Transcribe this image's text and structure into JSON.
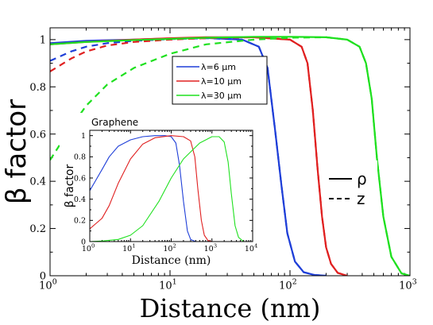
{
  "chart_data": [
    {
      "type": "line",
      "xlabel": "Distance (nm)",
      "ylabel": "β factor",
      "xscale": "log",
      "xlim": [
        1,
        1000
      ],
      "ylim": [
        0,
        1.05
      ],
      "xticks": [
        {
          "v": 1,
          "base": "10",
          "exp": "0"
        },
        {
          "v": 10,
          "base": "10",
          "exp": "1"
        },
        {
          "v": 100,
          "base": "10",
          "exp": "2"
        },
        {
          "v": 1000,
          "base": "10",
          "exp": "3"
        }
      ],
      "yticks": [
        "0",
        "0.2",
        "0.4",
        "0.6",
        "0.8",
        "1"
      ],
      "legend": {
        "placement": "top-middle",
        "entries": [
          {
            "label": "λ=6 μm",
            "color": "#1f3fd8"
          },
          {
            "label": "λ=10 μm",
            "color": "#e02020"
          },
          {
            "label": "λ=30 μm",
            "color": "#1fe01f"
          }
        ]
      },
      "style_legend": {
        "placement": "right-middle",
        "entries": [
          {
            "label": "ρ",
            "dash": "solid"
          },
          {
            "label": "z",
            "dash": "dashed"
          }
        ]
      },
      "series": [
        {
          "name": "λ=6 μm",
          "component": "ρ",
          "color": "#1f3fd8",
          "dash": "solid",
          "x": [
            1,
            2,
            5,
            10,
            20,
            40,
            55,
            65,
            75,
            85,
            95,
            110,
            130,
            160,
            200
          ],
          "y": [
            0.985,
            0.995,
            1.0,
            1.005,
            1.007,
            1.0,
            0.97,
            0.88,
            0.62,
            0.38,
            0.18,
            0.06,
            0.015,
            0.003,
            0.0
          ]
        },
        {
          "name": "λ=6 μm",
          "component": "z",
          "color": "#1f3fd8",
          "dash": "dashed",
          "x": [
            1,
            1.5,
            2,
            3,
            5,
            10,
            20,
            40,
            55,
            65,
            75,
            85,
            95,
            110,
            130,
            160,
            200
          ],
          "y": [
            0.91,
            0.95,
            0.97,
            0.985,
            0.995,
            1.002,
            1.006,
            1.0,
            0.97,
            0.88,
            0.62,
            0.38,
            0.18,
            0.06,
            0.015,
            0.003,
            0.0
          ]
        },
        {
          "name": "λ=10 μm",
          "component": "ρ",
          "color": "#e02020",
          "dash": "solid",
          "x": [
            1,
            2,
            5,
            10,
            20,
            50,
            100,
            125,
            140,
            155,
            170,
            185,
            200,
            220,
            250,
            300
          ],
          "y": [
            0.98,
            0.99,
            1.0,
            1.006,
            1.01,
            1.01,
            1.0,
            0.97,
            0.9,
            0.7,
            0.45,
            0.25,
            0.12,
            0.05,
            0.012,
            0.0
          ]
        },
        {
          "name": "λ=10 μm",
          "component": "z",
          "color": "#e02020",
          "dash": "dashed",
          "x": [
            1,
            1.5,
            2,
            3,
            5,
            10,
            20,
            50,
            100,
            125,
            140,
            155,
            170,
            185,
            200,
            220,
            250,
            300
          ],
          "y": [
            0.865,
            0.92,
            0.95,
            0.975,
            0.99,
            1.0,
            1.006,
            1.01,
            1.0,
            0.97,
            0.9,
            0.7,
            0.45,
            0.25,
            0.12,
            0.05,
            0.012,
            0.0
          ]
        },
        {
          "name": "λ=30 μm",
          "component": "ρ",
          "color": "#1fe01f",
          "dash": "solid",
          "x": [
            1,
            2,
            5,
            10,
            20,
            50,
            100,
            200,
            300,
            380,
            430,
            480,
            530,
            600,
            700,
            850,
            1000
          ],
          "y": [
            0.98,
            0.99,
            0.998,
            1.003,
            1.008,
            1.012,
            1.012,
            1.01,
            1.0,
            0.97,
            0.9,
            0.75,
            0.5,
            0.25,
            0.08,
            0.01,
            0.0
          ]
        },
        {
          "name": "λ=30 μm",
          "component": "z",
          "color": "#1fe01f",
          "dash": "dashed",
          "x": [
            1,
            1.5,
            2,
            3,
            5,
            10,
            20,
            50,
            100,
            200,
            300,
            380,
            430,
            480,
            530,
            600,
            700,
            850,
            1000
          ],
          "y": [
            0.49,
            0.63,
            0.72,
            0.81,
            0.88,
            0.94,
            0.98,
            1.0,
            1.008,
            1.01,
            1.0,
            0.97,
            0.9,
            0.75,
            0.5,
            0.25,
            0.08,
            0.01,
            0.0
          ]
        }
      ]
    },
    {
      "type": "line",
      "title": "Graphene",
      "xlabel": "Distance (nm)",
      "ylabel": "β factor",
      "xscale": "log",
      "xlim": [
        1,
        10000
      ],
      "ylim": [
        0,
        1.05
      ],
      "xticks": [
        {
          "v": 1,
          "base": "10",
          "exp": "0"
        },
        {
          "v": 10,
          "base": "10",
          "exp": "1"
        },
        {
          "v": 100,
          "base": "10",
          "exp": "2"
        },
        {
          "v": 1000,
          "base": "10",
          "exp": "3"
        },
        {
          "v": 10000,
          "base": "10",
          "exp": "4"
        }
      ],
      "yticks": [
        "0",
        "0.2",
        "0.4",
        "0.6",
        "0.8",
        "1"
      ],
      "series": [
        {
          "name": "λ=6 μm",
          "color": "#1f3fd8",
          "x": [
            1,
            2,
            3,
            5,
            10,
            20,
            40,
            70,
            100,
            130,
            160,
            200,
            250,
            300,
            400
          ],
          "y": [
            0.48,
            0.68,
            0.8,
            0.9,
            0.96,
            0.99,
            1.0,
            1.0,
            0.99,
            0.93,
            0.72,
            0.38,
            0.1,
            0.02,
            0.0
          ]
        },
        {
          "name": "λ=10 μm",
          "color": "#e02020",
          "x": [
            1,
            2,
            3,
            5,
            10,
            20,
            40,
            100,
            200,
            300,
            380,
            450,
            550,
            650,
            800,
            1000
          ],
          "y": [
            0.12,
            0.22,
            0.34,
            0.55,
            0.78,
            0.92,
            0.98,
            1.0,
            0.99,
            0.95,
            0.8,
            0.5,
            0.2,
            0.06,
            0.01,
            0.0
          ]
        },
        {
          "name": "λ=30 μm",
          "color": "#1fe01f",
          "x": [
            1,
            2,
            5,
            10,
            20,
            50,
            100,
            200,
            500,
            1000,
            1500,
            2000,
            2500,
            3000,
            3700,
            4500,
            6000
          ],
          "y": [
            0.0,
            0.005,
            0.02,
            0.06,
            0.15,
            0.38,
            0.6,
            0.78,
            0.93,
            0.99,
            0.99,
            0.94,
            0.75,
            0.45,
            0.15,
            0.04,
            0.0
          ]
        }
      ]
    }
  ]
}
